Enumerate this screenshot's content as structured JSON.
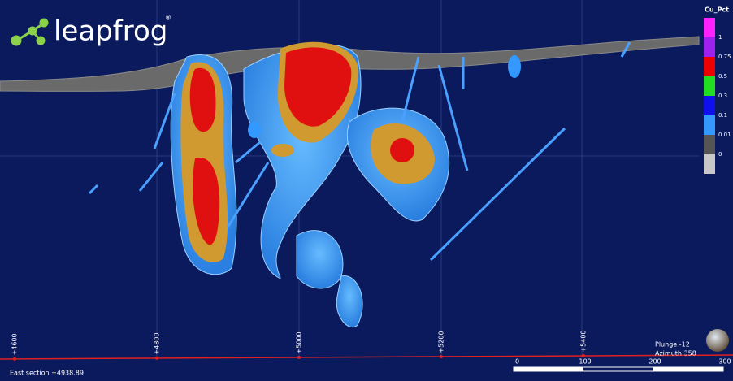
{
  "logo": {
    "text": "leapfrog",
    "mark": "®"
  },
  "legend": {
    "title": "Cu_Pct",
    "items": [
      {
        "label": "1",
        "color": "#ff22ff"
      },
      {
        "label": "0.75",
        "color": "#a020f0"
      },
      {
        "label": "0.5",
        "color": "#ee0000"
      },
      {
        "label": "0.3",
        "color": "#22dd22"
      },
      {
        "label": "0.1",
        "color": "#1010ee"
      },
      {
        "label": "0.01",
        "color": "#3399ff"
      },
      {
        "label": "0",
        "color": "#555555"
      }
    ],
    "last_color": "#c8c8c8"
  },
  "section_ticks": [
    "+4600",
    "+4800",
    "+5000",
    "+5200",
    "+5400"
  ],
  "section_label": "East section +4938.89",
  "view": {
    "plunge": "Plunge -12",
    "azimuth": "Azimuth 358"
  },
  "scale_bar": [
    "0",
    "100",
    "200",
    "300"
  ]
}
